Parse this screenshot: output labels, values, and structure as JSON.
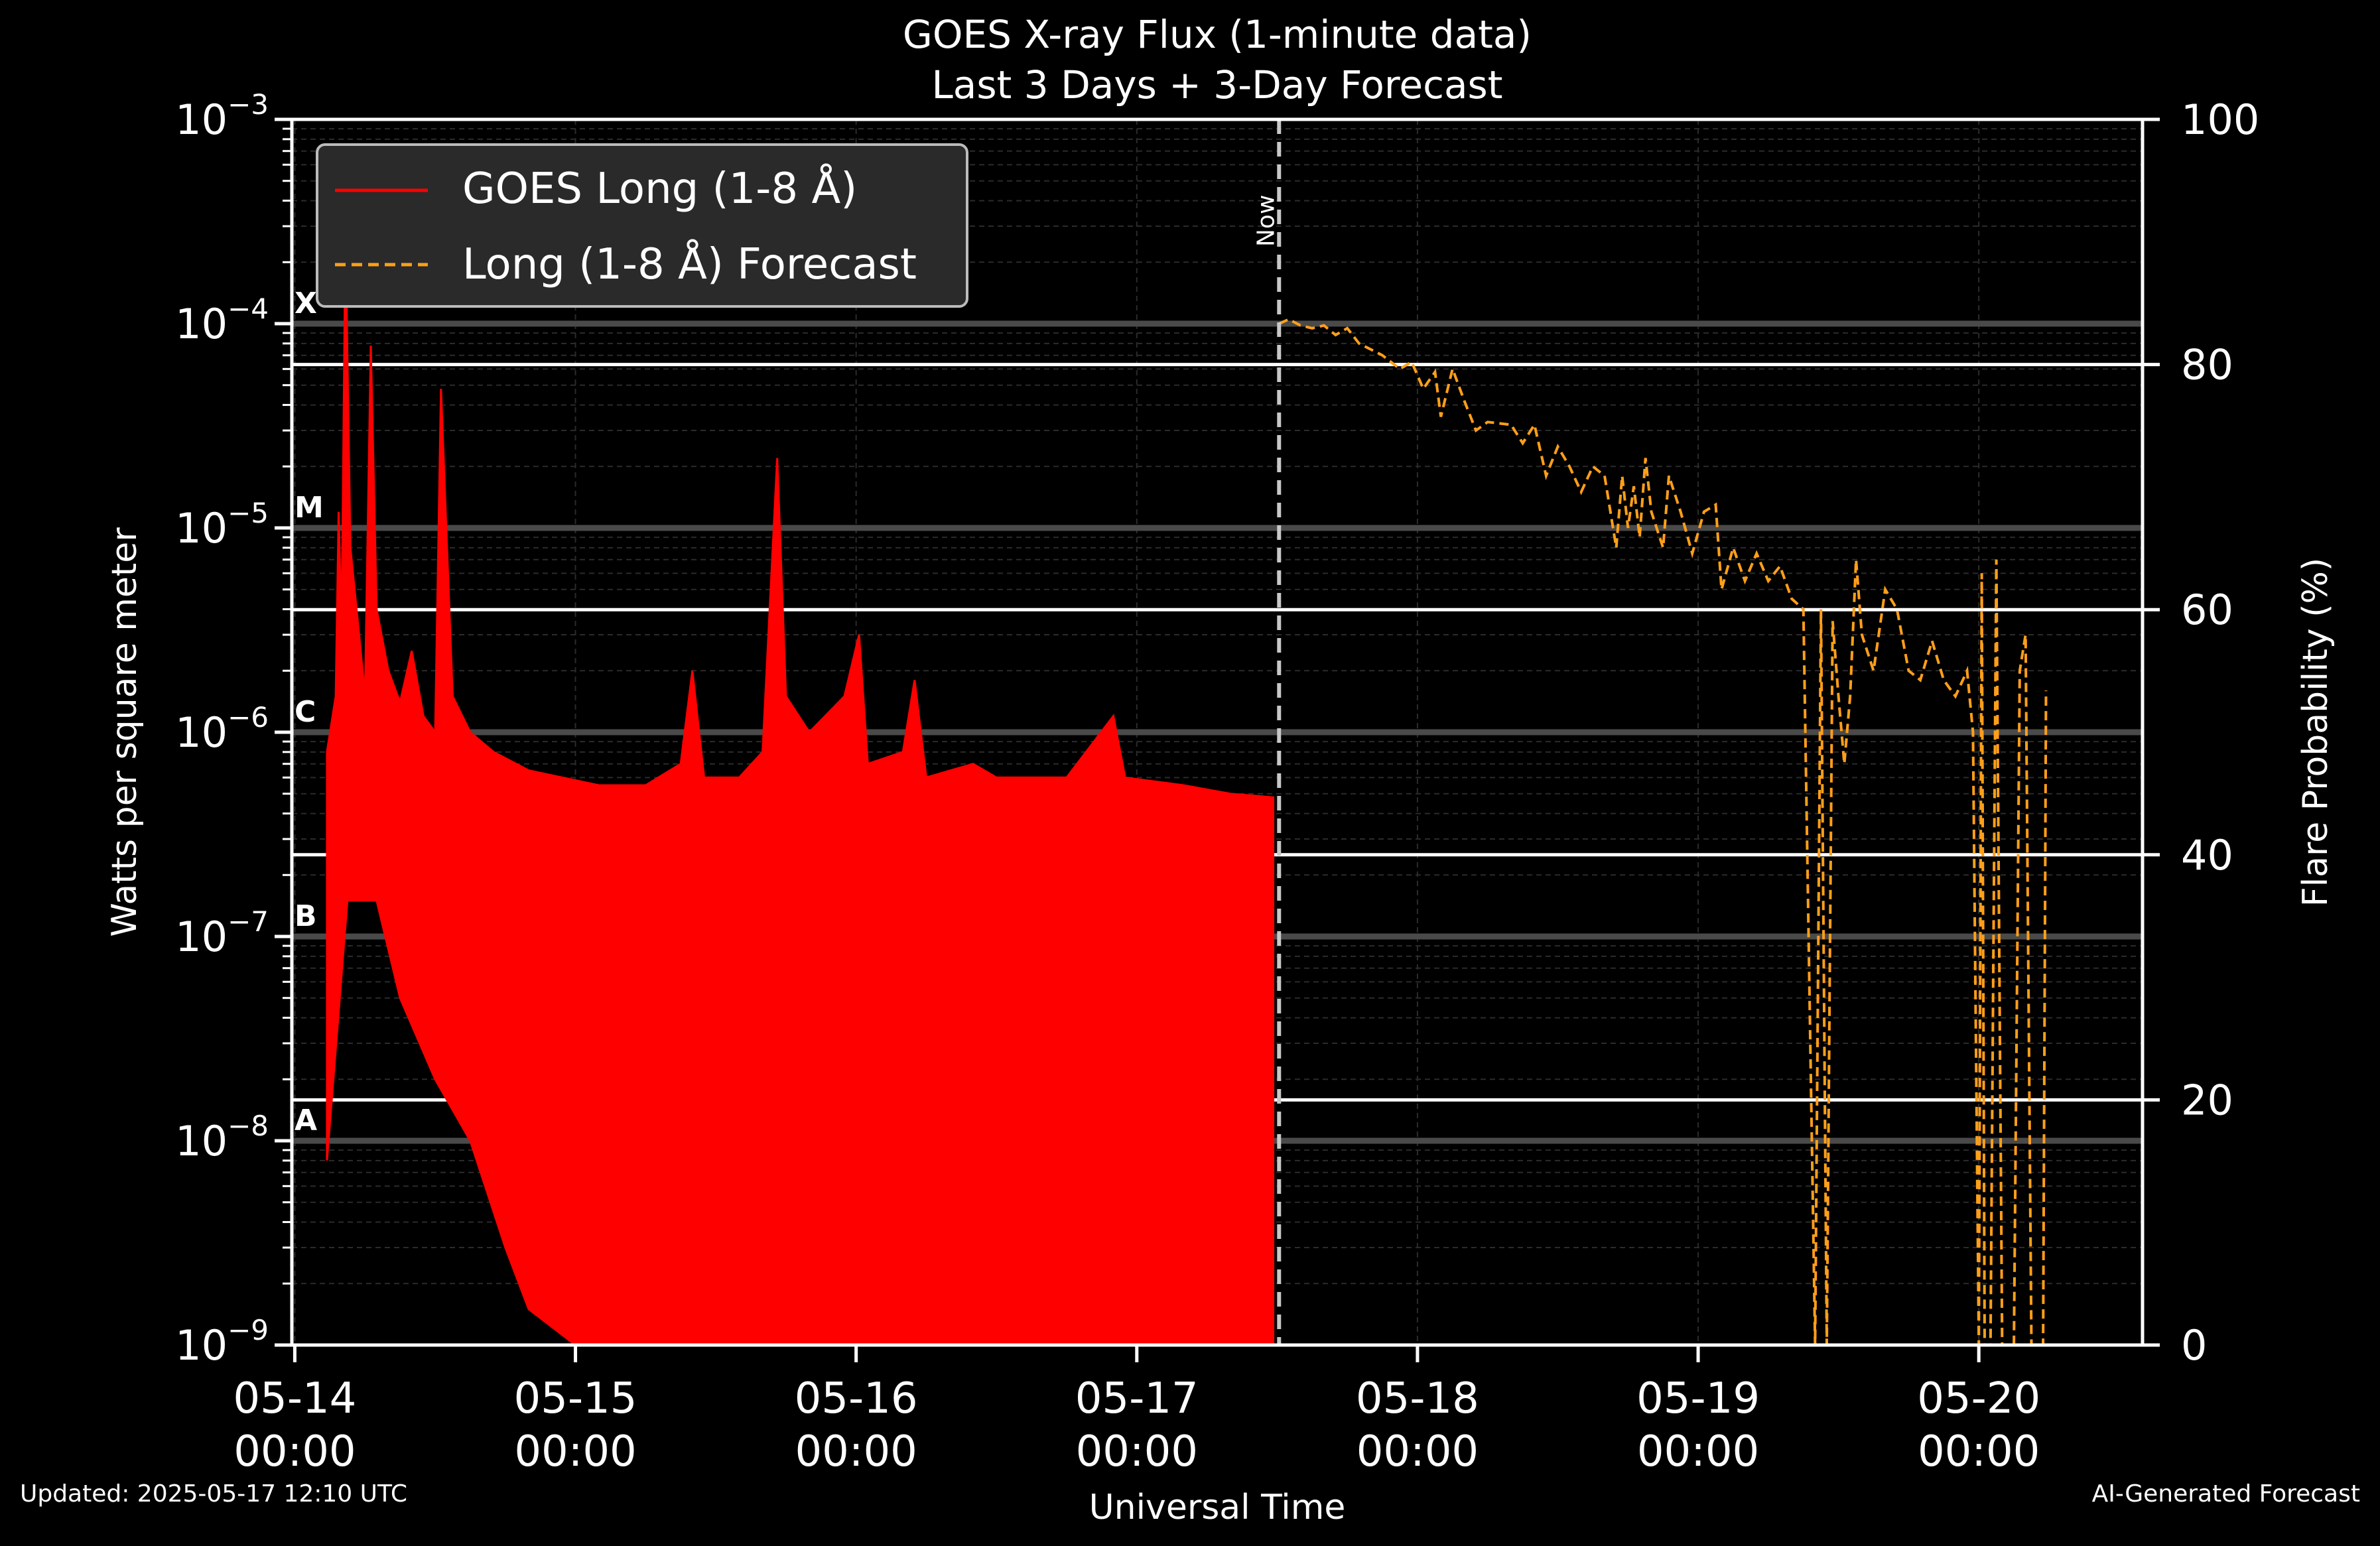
{
  "footer": {
    "updated": "Updated: 2025-05-17 12:10 UTC",
    "credit": "AI-Generated Forecast"
  },
  "chart_data": {
    "type": "line",
    "title": "GOES X-ray Flux (1-minute data)",
    "subtitle": "Last 3 Days + 3-Day Forecast",
    "xlabel": "Universal Time",
    "ylabel": "Watts per square meter",
    "y2label": "Flare Probability (%)",
    "y_scale": "log",
    "ylim": [
      1e-09,
      0.001
    ],
    "y2lim": [
      0,
      100
    ],
    "xlim": [
      "2025-05-13T23:45",
      "2025-05-20T14:00"
    ],
    "y_ticks": [
      {
        "value": 1e-09,
        "exp": "−9"
      },
      {
        "value": 1e-08,
        "exp": "−8"
      },
      {
        "value": 1e-07,
        "exp": "−7"
      },
      {
        "value": 1e-06,
        "exp": "−6"
      },
      {
        "value": 1e-05,
        "exp": "−5"
      },
      {
        "value": 0.0001,
        "exp": "−4"
      },
      {
        "value": 0.001,
        "exp": "−3"
      }
    ],
    "y2_ticks": [
      "0",
      "20",
      "40",
      "60",
      "80",
      "100"
    ],
    "x_ticks": [
      {
        "value": "2025-05-14T00:00",
        "line1": "05-14",
        "line2": "00:00"
      },
      {
        "value": "2025-05-15T00:00",
        "line1": "05-15",
        "line2": "00:00"
      },
      {
        "value": "2025-05-16T00:00",
        "line1": "05-16",
        "line2": "00:00"
      },
      {
        "value": "2025-05-17T00:00",
        "line1": "05-17",
        "line2": "00:00"
      },
      {
        "value": "2025-05-18T00:00",
        "line1": "05-18",
        "line2": "00:00"
      },
      {
        "value": "2025-05-19T00:00",
        "line1": "05-19",
        "line2": "00:00"
      },
      {
        "value": "2025-05-20T00:00",
        "line1": "05-20",
        "line2": "00:00"
      }
    ],
    "flare_classes": [
      {
        "label": "A",
        "value": 1e-08
      },
      {
        "label": "B",
        "value": 1e-07
      },
      {
        "label": "C",
        "value": 1e-06
      },
      {
        "label": "M",
        "value": 1e-05
      },
      {
        "label": "X",
        "value": 0.0001
      }
    ],
    "probability_lines": [
      20,
      40,
      60,
      80
    ],
    "now": {
      "time": "2025-05-17T12:10",
      "label": "Now"
    },
    "legend": {
      "placement": "top-left",
      "entries": [
        "GOES Long (1-8 Å)",
        "Long (1-8 Å) Forecast"
      ]
    },
    "series": [
      {
        "name": "GOES Long (1-8 Å)",
        "color": "#ff0000",
        "style": "solid",
        "upper": [
          [
            "2025-05-14T02:45",
            8e-07
          ],
          [
            "2025-05-14T03:30",
            1.5e-06
          ],
          [
            "2025-05-14T03:45",
            1.2e-05
          ],
          [
            "2025-05-14T04:00",
            3e-06
          ],
          [
            "2025-05-14T04:20",
            0.00028
          ],
          [
            "2025-05-14T04:45",
            8e-06
          ],
          [
            "2025-05-14T05:30",
            3e-06
          ],
          [
            "2025-05-14T06:00",
            1.5e-06
          ],
          [
            "2025-05-14T06:30",
            7.8e-05
          ],
          [
            "2025-05-14T07:00",
            4e-06
          ],
          [
            "2025-05-14T08:00",
            2e-06
          ],
          [
            "2025-05-14T09:00",
            1.4e-06
          ],
          [
            "2025-05-14T10:00",
            2.5e-06
          ],
          [
            "2025-05-14T11:00",
            1.2e-06
          ],
          [
            "2025-05-14T12:00",
            1e-06
          ],
          [
            "2025-05-14T12:30",
            4.8e-05
          ],
          [
            "2025-05-14T13:30",
            1.5e-06
          ],
          [
            "2025-05-14T15:00",
            1e-06
          ],
          [
            "2025-05-14T17:00",
            8e-07
          ],
          [
            "2025-05-14T20:00",
            6.5e-07
          ],
          [
            "2025-05-15T02:00",
            5.5e-07
          ],
          [
            "2025-05-15T06:00",
            5.5e-07
          ],
          [
            "2025-05-15T09:00",
            7e-07
          ],
          [
            "2025-05-15T10:00",
            2e-06
          ],
          [
            "2025-05-15T11:00",
            6e-07
          ],
          [
            "2025-05-15T14:00",
            6e-07
          ],
          [
            "2025-05-15T16:00",
            8e-07
          ],
          [
            "2025-05-15T17:15",
            2.2e-05
          ],
          [
            "2025-05-15T18:00",
            1.5e-06
          ],
          [
            "2025-05-15T20:00",
            1e-06
          ],
          [
            "2025-05-15T23:00",
            1.5e-06
          ],
          [
            "2025-05-16T00:15",
            3e-06
          ],
          [
            "2025-05-16T01:00",
            7e-07
          ],
          [
            "2025-05-16T04:00",
            8e-07
          ],
          [
            "2025-05-16T05:00",
            1.8e-06
          ],
          [
            "2025-05-16T06:00",
            6e-07
          ],
          [
            "2025-05-16T10:00",
            7e-07
          ],
          [
            "2025-05-16T12:00",
            6e-07
          ],
          [
            "2025-05-16T18:00",
            6e-07
          ],
          [
            "2025-05-16T22:00",
            1.2e-06
          ],
          [
            "2025-05-16T23:00",
            6e-07
          ],
          [
            "2025-05-17T04:00",
            5.5e-07
          ],
          [
            "2025-05-17T08:00",
            5e-07
          ],
          [
            "2025-05-17T11:40",
            4.8e-07
          ]
        ],
        "lower": [
          [
            "2025-05-14T02:45",
            8e-09
          ],
          [
            "2025-05-14T04:30",
            1.5e-07
          ],
          [
            "2025-05-14T07:00",
            1.5e-07
          ],
          [
            "2025-05-14T09:00",
            5e-08
          ],
          [
            "2025-05-14T12:00",
            2e-08
          ],
          [
            "2025-05-14T15:00",
            1e-08
          ],
          [
            "2025-05-14T18:00",
            3e-09
          ],
          [
            "2025-05-14T20:00",
            1.5e-09
          ],
          [
            "2025-05-15T00:00",
            1e-09
          ],
          [
            "2025-05-17T11:40",
            1e-09
          ]
        ]
      },
      {
        "name": "Long (1-8 Å) Forecast",
        "color": "#ff9f1a",
        "style": "dashed",
        "points": [
          [
            "2025-05-17T12:10",
            0.0001
          ],
          [
            "2025-05-17T13:00",
            0.000105
          ],
          [
            "2025-05-17T14:00",
            9.8e-05
          ],
          [
            "2025-05-17T15:00",
            9.5e-05
          ],
          [
            "2025-05-17T16:00",
            9.8e-05
          ],
          [
            "2025-05-17T17:00",
            8.8e-05
          ],
          [
            "2025-05-17T18:00",
            9.5e-05
          ],
          [
            "2025-05-17T19:00",
            8e-05
          ],
          [
            "2025-05-17T21:00",
            7e-05
          ],
          [
            "2025-05-17T22:30",
            6e-05
          ],
          [
            "2025-05-17T23:30",
            6.5e-05
          ],
          [
            "2025-05-18T00:30",
            4.8e-05
          ],
          [
            "2025-05-18T01:30",
            5.8e-05
          ],
          [
            "2025-05-18T02:00",
            3.5e-05
          ],
          [
            "2025-05-18T03:00",
            6e-05
          ],
          [
            "2025-05-18T04:00",
            4.2e-05
          ],
          [
            "2025-05-18T05:00",
            3e-05
          ],
          [
            "2025-05-18T06:00",
            3.3e-05
          ],
          [
            "2025-05-18T08:00",
            3.2e-05
          ],
          [
            "2025-05-18T09:00",
            2.6e-05
          ],
          [
            "2025-05-18T10:00",
            3.2e-05
          ],
          [
            "2025-05-18T11:00",
            1.8e-05
          ],
          [
            "2025-05-18T12:00",
            2.5e-05
          ],
          [
            "2025-05-18T13:00",
            2e-05
          ],
          [
            "2025-05-18T14:00",
            1.5e-05
          ],
          [
            "2025-05-18T15:00",
            2e-05
          ],
          [
            "2025-05-18T16:00",
            1.8e-05
          ],
          [
            "2025-05-18T17:00",
            8e-06
          ],
          [
            "2025-05-18T17:30",
            1.8e-05
          ],
          [
            "2025-05-18T18:00",
            1e-05
          ],
          [
            "2025-05-18T18:30",
            1.6e-05
          ],
          [
            "2025-05-18T19:00",
            9e-06
          ],
          [
            "2025-05-18T19:30",
            2.2e-05
          ],
          [
            "2025-05-18T20:00",
            1.2e-05
          ],
          [
            "2025-05-18T21:00",
            8e-06
          ],
          [
            "2025-05-18T21:30",
            1.8e-05
          ],
          [
            "2025-05-18T22:30",
            1.2e-05
          ],
          [
            "2025-05-18T23:30",
            7.5e-06
          ],
          [
            "2025-05-19T00:30",
            1.2e-05
          ],
          [
            "2025-05-19T01:30",
            1.3e-05
          ],
          [
            "2025-05-19T02:00",
            5e-06
          ],
          [
            "2025-05-19T03:00",
            8e-06
          ],
          [
            "2025-05-19T04:00",
            5.5e-06
          ],
          [
            "2025-05-19T05:00",
            7.5e-06
          ],
          [
            "2025-05-19T06:00",
            5.5e-06
          ],
          [
            "2025-05-19T07:00",
            6.5e-06
          ],
          [
            "2025-05-19T08:00",
            4.5e-06
          ],
          [
            "2025-05-19T09:00",
            4e-06
          ],
          [
            "2025-05-19T10:00",
            1e-09
          ],
          [
            "2025-05-19T10:30",
            4e-06
          ],
          [
            "2025-05-19T11:00",
            1e-09
          ],
          [
            "2025-05-19T11:30",
            3.5e-06
          ],
          [
            "2025-05-19T12:00",
            1.5e-06
          ],
          [
            "2025-05-19T12:30",
            7e-07
          ],
          [
            "2025-05-19T13:00",
            1.5e-06
          ],
          [
            "2025-05-19T13:30",
            7e-06
          ],
          [
            "2025-05-19T14:00",
            3e-06
          ],
          [
            "2025-05-19T15:00",
            2e-06
          ],
          [
            "2025-05-19T16:00",
            5e-06
          ],
          [
            "2025-05-19T17:00",
            4e-06
          ],
          [
            "2025-05-19T18:00",
            2e-06
          ],
          [
            "2025-05-19T19:00",
            1.8e-06
          ],
          [
            "2025-05-19T20:00",
            2.8e-06
          ],
          [
            "2025-05-19T21:00",
            1.8e-06
          ],
          [
            "2025-05-19T22:00",
            1.5e-06
          ],
          [
            "2025-05-19T23:00",
            2e-06
          ],
          [
            "2025-05-19T23:30",
            1e-06
          ],
          [
            "2025-05-20T00:00",
            1e-09
          ],
          [
            "2025-05-20T00:15",
            6e-06
          ],
          [
            "2025-05-20T00:30",
            1e-09
          ],
          [
            "2025-05-20T01:00",
            1e-09
          ],
          [
            "2025-05-20T01:30",
            7e-06
          ],
          [
            "2025-05-20T02:00",
            1e-09
          ],
          [
            "2025-05-20T03:00",
            1e-09
          ],
          [
            "2025-05-20T03:30",
            2e-06
          ],
          [
            "2025-05-20T04:00",
            3e-06
          ],
          [
            "2025-05-20T04:30",
            1e-09
          ],
          [
            "2025-05-20T05:30",
            1e-09
          ],
          [
            "2025-05-20T05:45",
            1.6e-06
          ]
        ]
      }
    ]
  }
}
